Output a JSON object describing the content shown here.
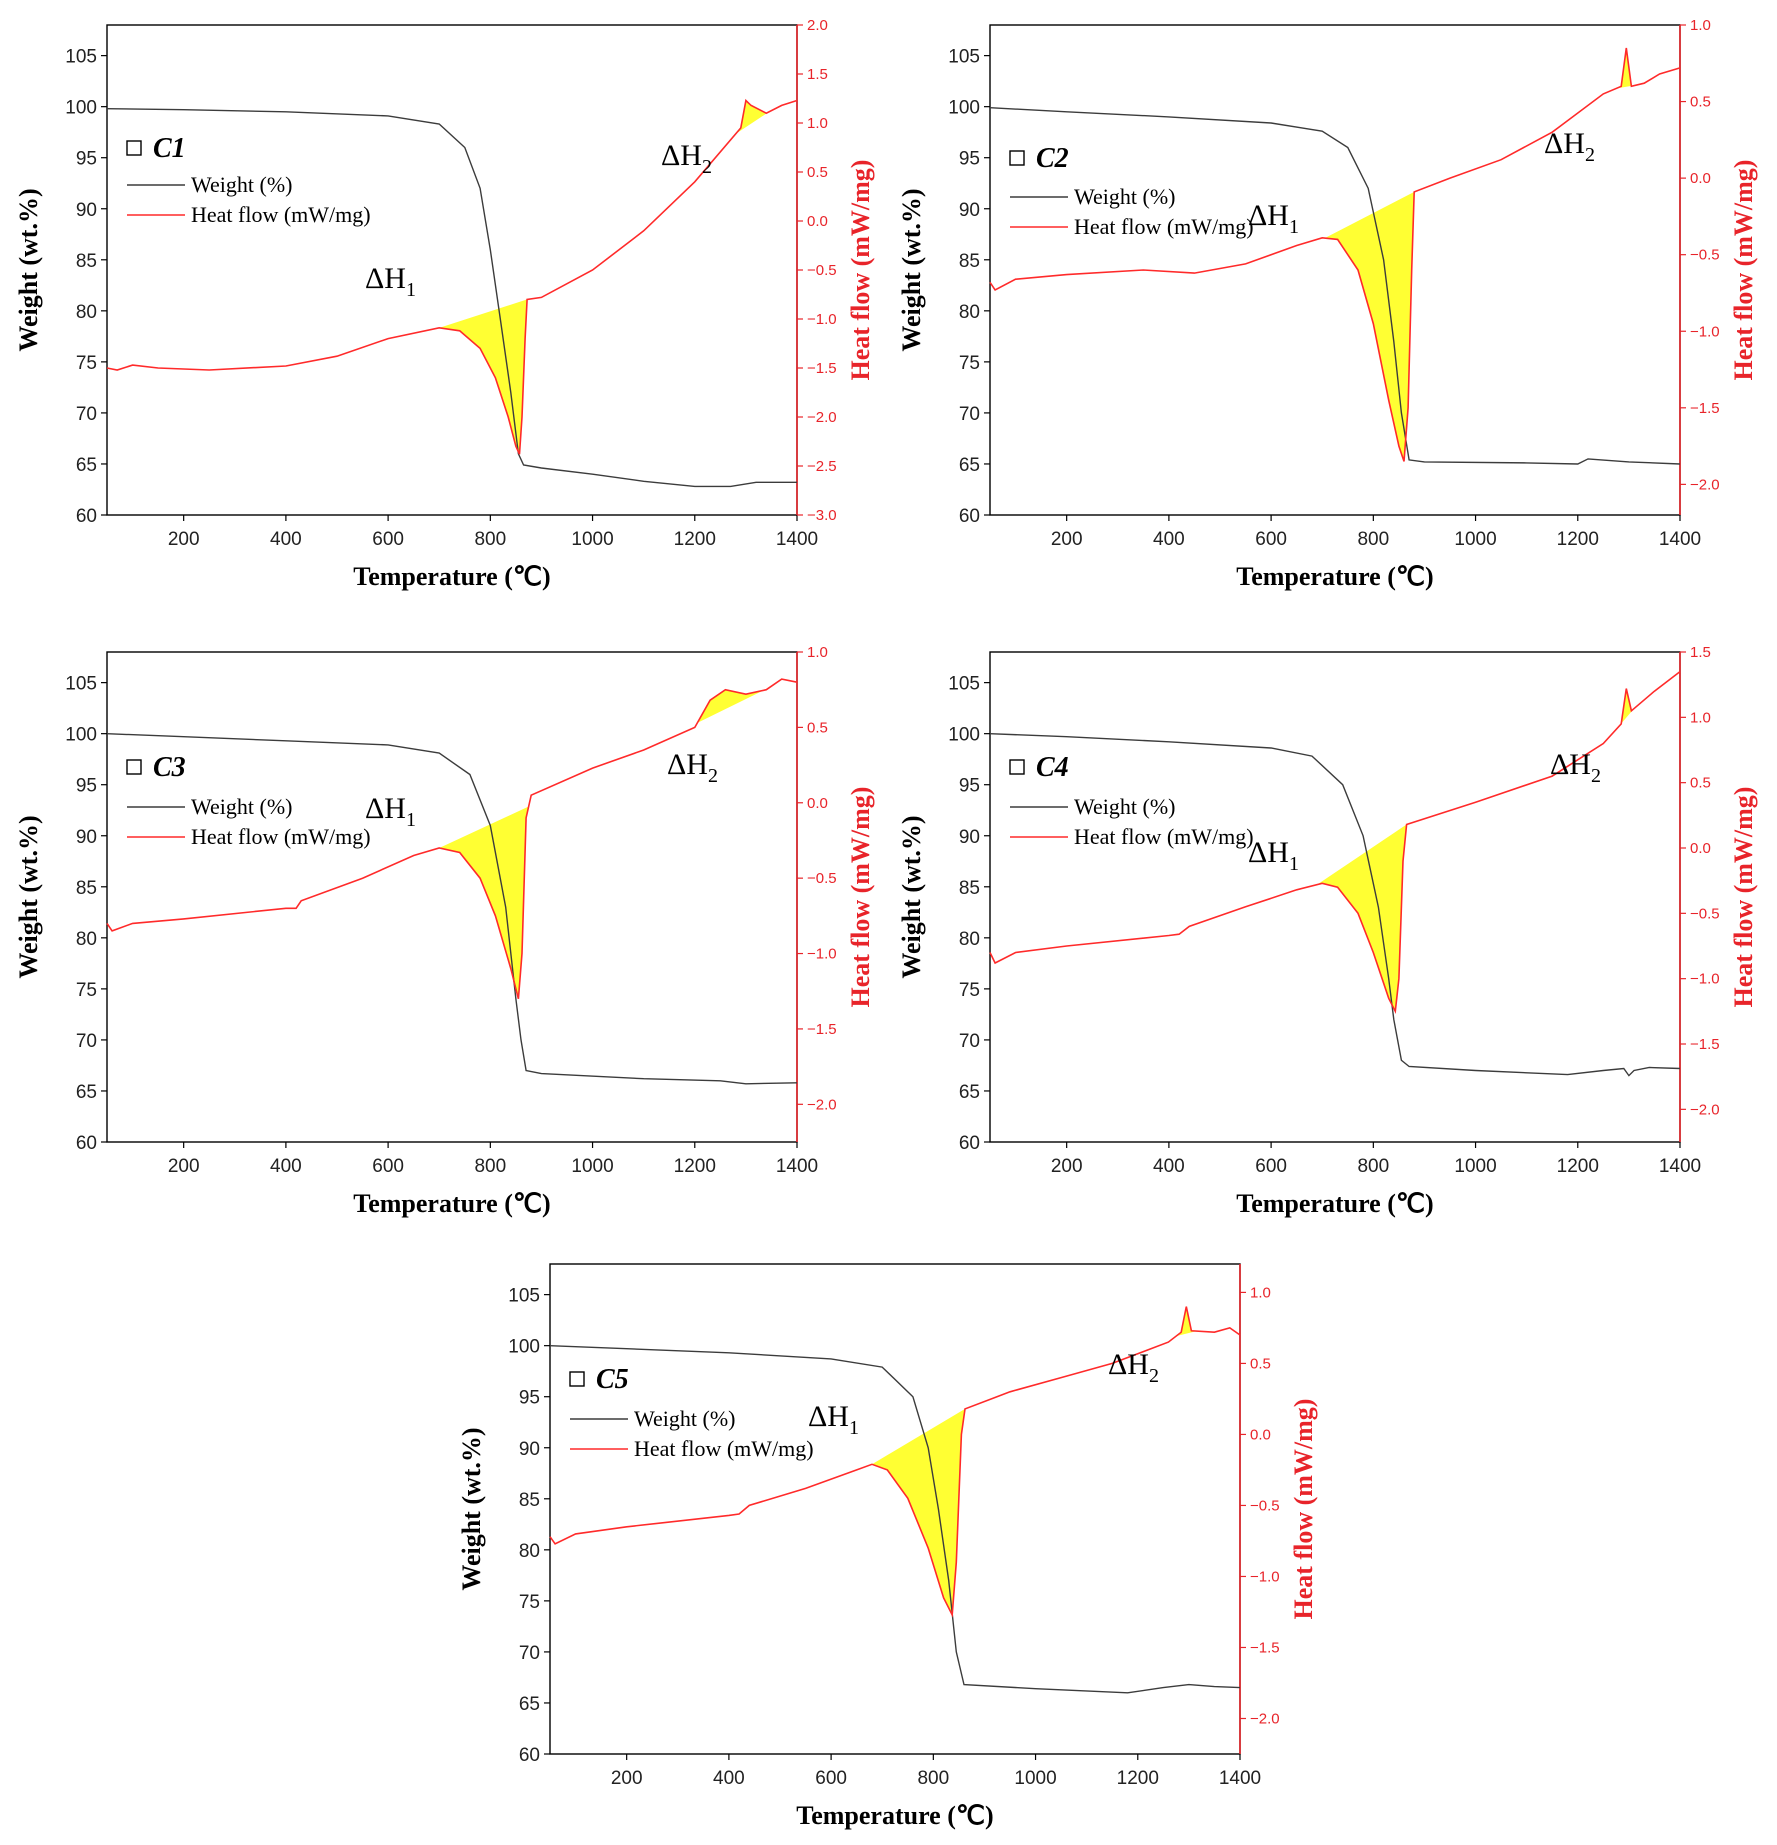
{
  "colors": {
    "weight": "#3c3c3c",
    "heat": "#ff2a2a",
    "fill": "#ffff33",
    "right_axis": "#e8242a"
  },
  "chart_data": [
    {
      "id": "C1",
      "type": "line",
      "panel_label": "C1",
      "xlabel": "Temperature (℃)",
      "ylabel_left": "Weight (wt.%)",
      "ylabel_right": "Heat flow (mW/mg)",
      "xlim": [
        50,
        1400
      ],
      "ylim_left": [
        60,
        108
      ],
      "ylim_right": [
        -3.0,
        2.0
      ],
      "xticks": [
        200,
        400,
        600,
        800,
        1000,
        1200,
        1400
      ],
      "yticks_left": [
        60,
        65,
        70,
        75,
        80,
        85,
        90,
        95,
        100,
        105
      ],
      "yticks_right": [
        -3.0,
        -2.5,
        -2.0,
        -1.5,
        -1.0,
        -0.5,
        0.0,
        0.5,
        1.0,
        1.5,
        2.0
      ],
      "legend": [
        "Weight (%)",
        "Heat flow (mW/mg)"
      ],
      "peak_labels": [
        "ΔH",
        "1",
        "ΔH",
        "2"
      ],
      "weight": [
        [
          50,
          99.8
        ],
        [
          200,
          99.7
        ],
        [
          400,
          99.5
        ],
        [
          600,
          99.1
        ],
        [
          700,
          98.3
        ],
        [
          750,
          96
        ],
        [
          780,
          92
        ],
        [
          800,
          86
        ],
        [
          820,
          79
        ],
        [
          840,
          72
        ],
        [
          855,
          66
        ],
        [
          865,
          64.9
        ],
        [
          900,
          64.6
        ],
        [
          1000,
          64
        ],
        [
          1100,
          63.3
        ],
        [
          1200,
          62.8
        ],
        [
          1270,
          62.8
        ],
        [
          1320,
          63.2
        ],
        [
          1400,
          63.2
        ]
      ],
      "heat": [
        [
          50,
          -1.5
        ],
        [
          70,
          -1.52
        ],
        [
          100,
          -1.47
        ],
        [
          150,
          -1.5
        ],
        [
          250,
          -1.52
        ],
        [
          400,
          -1.48
        ],
        [
          500,
          -1.38
        ],
        [
          600,
          -1.2
        ],
        [
          700,
          -1.09
        ],
        [
          740,
          -1.12
        ],
        [
          780,
          -1.3
        ],
        [
          810,
          -1.6
        ],
        [
          835,
          -2.0
        ],
        [
          850,
          -2.3
        ],
        [
          857,
          -2.38
        ],
        [
          862,
          -2.0
        ],
        [
          868,
          -1.2
        ],
        [
          872,
          -0.8
        ],
        [
          900,
          -0.78
        ],
        [
          1000,
          -0.5
        ],
        [
          1100,
          -0.1
        ],
        [
          1200,
          0.4
        ],
        [
          1290,
          0.95
        ],
        [
          1300,
          1.23
        ],
        [
          1310,
          1.18
        ],
        [
          1340,
          1.1
        ],
        [
          1370,
          1.18
        ],
        [
          1400,
          1.23
        ]
      ],
      "dh1_range": [
        700,
        872
      ],
      "dh2_range": [
        1280,
        1345
      ]
    },
    {
      "id": "C2",
      "type": "line",
      "panel_label": "C2",
      "xlabel": "Temperature (℃)",
      "ylabel_left": "Weight (wt.%)",
      "ylabel_right": "Heat flow (mW/mg)",
      "xlim": [
        50,
        1400
      ],
      "ylim_left": [
        60,
        108
      ],
      "ylim_right": [
        -2.2,
        1.0
      ],
      "xticks": [
        200,
        400,
        600,
        800,
        1000,
        1200,
        1400
      ],
      "yticks_left": [
        60,
        65,
        70,
        75,
        80,
        85,
        90,
        95,
        100,
        105
      ],
      "yticks_right": [
        -2.0,
        -1.5,
        -1.0,
        -0.5,
        0.0,
        0.5,
        1.0
      ],
      "legend": [
        "Weight (%)",
        "Heat flow (mW/mg)"
      ],
      "peak_labels": [
        "ΔH",
        "1",
        "ΔH",
        "2"
      ],
      "weight": [
        [
          50,
          99.9
        ],
        [
          200,
          99.5
        ],
        [
          400,
          99
        ],
        [
          600,
          98.4
        ],
        [
          700,
          97.6
        ],
        [
          750,
          96
        ],
        [
          790,
          92
        ],
        [
          820,
          85
        ],
        [
          840,
          77
        ],
        [
          855,
          70
        ],
        [
          870,
          65.4
        ],
        [
          900,
          65.2
        ],
        [
          1100,
          65.1
        ],
        [
          1200,
          65
        ],
        [
          1220,
          65.5
        ],
        [
          1300,
          65.2
        ],
        [
          1400,
          65
        ]
      ],
      "heat": [
        [
          50,
          -0.68
        ],
        [
          60,
          -0.73
        ],
        [
          100,
          -0.66
        ],
        [
          200,
          -0.63
        ],
        [
          350,
          -0.6
        ],
        [
          450,
          -0.62
        ],
        [
          550,
          -0.56
        ],
        [
          650,
          -0.44
        ],
        [
          700,
          -0.39
        ],
        [
          730,
          -0.4
        ],
        [
          770,
          -0.6
        ],
        [
          800,
          -0.95
        ],
        [
          830,
          -1.45
        ],
        [
          850,
          -1.75
        ],
        [
          860,
          -1.85
        ],
        [
          868,
          -1.5
        ],
        [
          875,
          -0.6
        ],
        [
          880,
          -0.09
        ],
        [
          950,
          0.0
        ],
        [
          1050,
          0.12
        ],
        [
          1150,
          0.3
        ],
        [
          1250,
          0.55
        ],
        [
          1285,
          0.6
        ],
        [
          1295,
          0.85
        ],
        [
          1305,
          0.6
        ],
        [
          1330,
          0.62
        ],
        [
          1360,
          0.68
        ],
        [
          1400,
          0.72
        ]
      ],
      "dh1_range": [
        705,
        880
      ],
      "dh2_range": [
        1275,
        1315
      ]
    },
    {
      "id": "C3",
      "type": "line",
      "panel_label": "C3",
      "xlabel": "Temperature (℃)",
      "ylabel_left": "Weight (wt.%)",
      "ylabel_right": "Heat flow (mW/mg)",
      "xlim": [
        50,
        1400
      ],
      "ylim_left": [
        60,
        108
      ],
      "ylim_right": [
        -2.25,
        1.0
      ],
      "xticks": [
        200,
        400,
        600,
        800,
        1000,
        1200,
        1400
      ],
      "yticks_left": [
        60,
        65,
        70,
        75,
        80,
        85,
        90,
        95,
        100,
        105
      ],
      "yticks_right": [
        -2.0,
        -1.5,
        -1.0,
        -0.5,
        0.0,
        0.5,
        1.0
      ],
      "legend": [
        "Weight (%)",
        "Heat flow (mW/mg)"
      ],
      "peak_labels": [
        "ΔH",
        "1",
        "ΔH",
        "2"
      ],
      "weight": [
        [
          50,
          100
        ],
        [
          200,
          99.7
        ],
        [
          400,
          99.3
        ],
        [
          600,
          98.9
        ],
        [
          700,
          98.1
        ],
        [
          760,
          96
        ],
        [
          800,
          91
        ],
        [
          830,
          83
        ],
        [
          850,
          74
        ],
        [
          860,
          70
        ],
        [
          870,
          67
        ],
        [
          900,
          66.7
        ],
        [
          1100,
          66.2
        ],
        [
          1250,
          66
        ],
        [
          1300,
          65.7
        ],
        [
          1400,
          65.8
        ]
      ],
      "heat": [
        [
          50,
          -0.8
        ],
        [
          60,
          -0.85
        ],
        [
          100,
          -0.8
        ],
        [
          200,
          -0.77
        ],
        [
          400,
          -0.7
        ],
        [
          420,
          -0.7
        ],
        [
          430,
          -0.65
        ],
        [
          550,
          -0.5
        ],
        [
          650,
          -0.35
        ],
        [
          700,
          -0.3
        ],
        [
          740,
          -0.33
        ],
        [
          780,
          -0.5
        ],
        [
          810,
          -0.75
        ],
        [
          840,
          -1.1
        ],
        [
          855,
          -1.3
        ],
        [
          862,
          -1.0
        ],
        [
          870,
          -0.1
        ],
        [
          880,
          0.05
        ],
        [
          1000,
          0.23
        ],
        [
          1100,
          0.35
        ],
        [
          1200,
          0.5
        ],
        [
          1230,
          0.68
        ],
        [
          1260,
          0.75
        ],
        [
          1300,
          0.72
        ],
        [
          1340,
          0.75
        ],
        [
          1370,
          0.82
        ],
        [
          1400,
          0.8
        ]
      ],
      "dh1_range": [
        700,
        875
      ],
      "dh2_range": [
        1205,
        1335
      ]
    },
    {
      "id": "C4",
      "type": "line",
      "panel_label": "C4",
      "xlabel": "Temperature (℃)",
      "ylabel_left": "Weight (wt.%)",
      "ylabel_right": "Heat flow (mW/mg)",
      "xlim": [
        50,
        1400
      ],
      "ylim_left": [
        60,
        108
      ],
      "ylim_right": [
        -2.25,
        1.5
      ],
      "xticks": [
        200,
        400,
        600,
        800,
        1000,
        1200,
        1400
      ],
      "yticks_left": [
        60,
        65,
        70,
        75,
        80,
        85,
        90,
        95,
        100,
        105
      ],
      "yticks_right": [
        -2.0,
        -1.5,
        -1.0,
        -0.5,
        0.0,
        0.5,
        1.0,
        1.5
      ],
      "legend": [
        "Weight (%)",
        "Heat flow (mW/mg)"
      ],
      "peak_labels": [
        "ΔH",
        "1",
        "ΔH",
        "2"
      ],
      "weight": [
        [
          50,
          100
        ],
        [
          200,
          99.7
        ],
        [
          400,
          99.2
        ],
        [
          600,
          98.6
        ],
        [
          680,
          97.8
        ],
        [
          740,
          95
        ],
        [
          780,
          90
        ],
        [
          810,
          83
        ],
        [
          830,
          76
        ],
        [
          840,
          72
        ],
        [
          855,
          68
        ],
        [
          870,
          67.4
        ],
        [
          1000,
          67
        ],
        [
          1180,
          66.6
        ],
        [
          1250,
          67
        ],
        [
          1290,
          67.2
        ],
        [
          1300,
          66.5
        ],
        [
          1310,
          67
        ],
        [
          1340,
          67.3
        ],
        [
          1400,
          67.2
        ]
      ],
      "heat": [
        [
          50,
          -0.8
        ],
        [
          60,
          -0.88
        ],
        [
          100,
          -0.8
        ],
        [
          200,
          -0.75
        ],
        [
          400,
          -0.67
        ],
        [
          420,
          -0.66
        ],
        [
          440,
          -0.6
        ],
        [
          550,
          -0.45
        ],
        [
          650,
          -0.32
        ],
        [
          700,
          -0.27
        ],
        [
          730,
          -0.3
        ],
        [
          770,
          -0.5
        ],
        [
          800,
          -0.8
        ],
        [
          830,
          -1.15
        ],
        [
          843,
          -1.25
        ],
        [
          850,
          -1.0
        ],
        [
          858,
          -0.1
        ],
        [
          865,
          0.18
        ],
        [
          1000,
          0.35
        ],
        [
          1150,
          0.55
        ],
        [
          1250,
          0.8
        ],
        [
          1285,
          0.95
        ],
        [
          1295,
          1.22
        ],
        [
          1305,
          1.05
        ],
        [
          1350,
          1.2
        ],
        [
          1400,
          1.35
        ]
      ],
      "dh1_range": [
        690,
        865
      ],
      "dh2_range": [
        1275,
        1310
      ]
    },
    {
      "id": "C5",
      "type": "line",
      "panel_label": "C5",
      "xlabel": "Temperature (℃)",
      "ylabel_left": "Weight (wt.%)",
      "ylabel_right": "Heat flow (mW/mg)",
      "xlim": [
        50,
        1400
      ],
      "ylim_left": [
        60,
        108
      ],
      "ylim_right": [
        -2.25,
        1.2
      ],
      "xticks": [
        200,
        400,
        600,
        800,
        1000,
        1200,
        1400
      ],
      "yticks_left": [
        60,
        65,
        70,
        75,
        80,
        85,
        90,
        95,
        100,
        105
      ],
      "yticks_right": [
        -2.0,
        -1.5,
        -1.0,
        -0.5,
        0.0,
        0.5,
        1.0
      ],
      "legend": [
        "Weight (%)",
        "Heat flow (mW/mg)"
      ],
      "peak_labels": [
        "ΔH",
        "1",
        "ΔH",
        "2"
      ],
      "weight": [
        [
          50,
          100
        ],
        [
          200,
          99.7
        ],
        [
          400,
          99.3
        ],
        [
          600,
          98.7
        ],
        [
          700,
          97.9
        ],
        [
          760,
          95
        ],
        [
          790,
          90
        ],
        [
          810,
          84
        ],
        [
          830,
          77
        ],
        [
          845,
          70
        ],
        [
          860,
          66.8
        ],
        [
          1000,
          66.4
        ],
        [
          1180,
          66
        ],
        [
          1250,
          66.5
        ],
        [
          1300,
          66.8
        ],
        [
          1350,
          66.6
        ],
        [
          1400,
          66.5
        ]
      ],
      "heat": [
        [
          50,
          -0.72
        ],
        [
          60,
          -0.77
        ],
        [
          100,
          -0.7
        ],
        [
          200,
          -0.65
        ],
        [
          400,
          -0.57
        ],
        [
          420,
          -0.56
        ],
        [
          440,
          -0.5
        ],
        [
          550,
          -0.38
        ],
        [
          650,
          -0.25
        ],
        [
          680,
          -0.21
        ],
        [
          710,
          -0.25
        ],
        [
          750,
          -0.45
        ],
        [
          790,
          -0.8
        ],
        [
          820,
          -1.15
        ],
        [
          837,
          -1.27
        ],
        [
          845,
          -0.9
        ],
        [
          855,
          0.0
        ],
        [
          862,
          0.18
        ],
        [
          950,
          0.3
        ],
        [
          1050,
          0.4
        ],
        [
          1150,
          0.5
        ],
        [
          1260,
          0.65
        ],
        [
          1285,
          0.72
        ],
        [
          1295,
          0.9
        ],
        [
          1305,
          0.73
        ],
        [
          1350,
          0.72
        ],
        [
          1380,
          0.75
        ],
        [
          1400,
          0.7
        ]
      ],
      "dh1_range": [
        680,
        862
      ],
      "dh2_range": [
        1275,
        1315
      ]
    }
  ]
}
